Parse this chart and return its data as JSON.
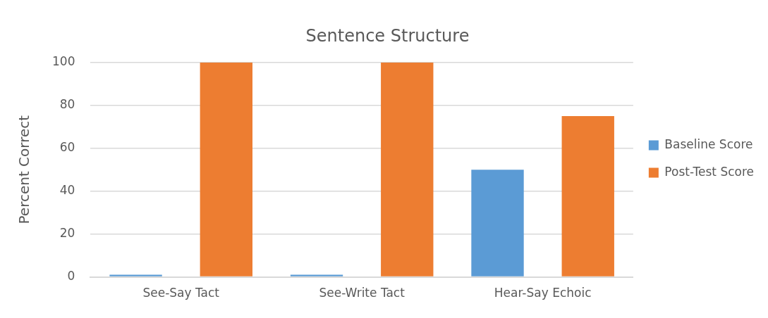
{
  "chart_data": {
    "type": "bar",
    "title": "Sentence Structure",
    "ylabel": "Percent Correct",
    "categories": [
      "See-Say Tact",
      "See-Write Tact",
      "Hear-Say Echoic"
    ],
    "series": [
      {
        "name": "Baseline Score",
        "color": "#5b9bd5",
        "values": [
          1,
          1,
          50
        ]
      },
      {
        "name": "Post-Test Score",
        "color": "#ed7d31",
        "values": [
          100,
          100,
          75
        ]
      }
    ],
    "ylim": [
      0,
      100
    ],
    "yticks": [
      0,
      20,
      40,
      60,
      80,
      100
    ],
    "grid": "y",
    "legend": "right"
  }
}
